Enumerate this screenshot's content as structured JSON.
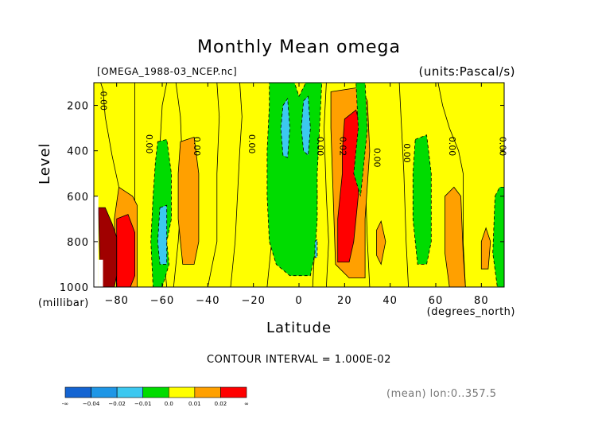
{
  "title": "Monthly Mean omega",
  "file_label": "[OMEGA_1988-03_NCEP.nc]",
  "units_label": "(units:Pascal/s)",
  "contour_interval": "CONTOUR INTERVAL = 1.000E-02",
  "mean_label": "(mean) lon:0..357.5",
  "chart_data": {
    "type": "heatmap",
    "title": "Monthly Mean omega",
    "xlabel": "Latitude",
    "x_units": "(degrees_north)",
    "ylabel": "Level",
    "y_units": "(millibar)",
    "xlim": [
      -90,
      90
    ],
    "ylim": [
      1000,
      100
    ],
    "y_reversed": true,
    "grid": false,
    "x_ticks": [
      -80,
      -60,
      -40,
      -20,
      0,
      20,
      40,
      60,
      80
    ],
    "y_ticks": [
      200,
      400,
      600,
      800,
      1000
    ],
    "levels": [
      -0.04,
      -0.02,
      -0.01,
      0.0,
      0.01,
      0.02
    ],
    "colorbar": {
      "colors": [
        "#1464d2",
        "#1e96e6",
        "#3cc8f0",
        "#00dc00",
        "#ffff00",
        "#ffa000",
        "#ff0000"
      ],
      "labels": [
        "-∞",
        "−0.04",
        "−0.02",
        "−0.01",
        "0.0",
        "0.01",
        "0.02",
        "∞"
      ]
    },
    "contour_labels": [
      {
        "text": "0.00",
        "x": -87,
        "y": 180
      },
      {
        "text": "0.00",
        "x": -67,
        "y": 370
      },
      {
        "text": "0.00",
        "x": -46,
        "y": 380
      },
      {
        "text": "0.00",
        "x": -22,
        "y": 370
      },
      {
        "text": "0.00",
        "x": 8,
        "y": 380
      },
      {
        "text": "0.02",
        "x": 18,
        "y": 380
      },
      {
        "text": "0.00",
        "x": 33,
        "y": 430
      },
      {
        "text": "0.00",
        "x": 46,
        "y": 410
      },
      {
        "text": "0.00",
        "x": 66,
        "y": 380
      },
      {
        "text": "0.00",
        "x": 88,
        "y": 380
      }
    ],
    "regions": [
      {
        "level": 0.0,
        "poly": [
          [
            -90,
            100
          ],
          [
            -87,
            100
          ],
          [
            -86,
            130
          ],
          [
            -85,
            250
          ],
          [
            -82,
            420
          ],
          [
            -79,
            560
          ],
          [
            -75,
            620
          ],
          [
            -72,
            650
          ],
          [
            -72,
            1000
          ],
          [
            -90,
            1000
          ]
        ]
      },
      {
        "level": 0.0,
        "poly": [
          [
            -72,
            100
          ],
          [
            -58,
            100
          ],
          [
            -60,
            200
          ],
          [
            -61,
            380
          ],
          [
            -60,
            600
          ],
          [
            -60,
            800
          ],
          [
            -58,
            1000
          ],
          [
            -72,
            1000
          ]
        ]
      },
      {
        "level": 0.0,
        "poly": [
          [
            -54,
            100
          ],
          [
            -36,
            100
          ],
          [
            -35,
            250
          ],
          [
            -36,
            500
          ],
          [
            -36,
            800
          ],
          [
            -40,
            1000
          ],
          [
            -55,
            1000
          ],
          [
            -53,
            800
          ],
          [
            -51,
            500
          ],
          [
            -52,
            250
          ]
        ]
      },
      {
        "level": 0.0,
        "poly": [
          [
            -26,
            100
          ],
          [
            -8,
            100
          ],
          [
            -10,
            200
          ],
          [
            -11,
            400
          ],
          [
            -13,
            600
          ],
          [
            -12,
            800
          ],
          [
            -14,
            1000
          ],
          [
            -30,
            1000
          ],
          [
            -28,
            800
          ],
          [
            -27,
            600
          ],
          [
            -26,
            400
          ],
          [
            -25,
            250
          ]
        ]
      },
      {
        "level": 0.0,
        "poly": [
          [
            6,
            100
          ],
          [
            12,
            100
          ],
          [
            11,
            300
          ],
          [
            12,
            600
          ],
          [
            13,
            800
          ],
          [
            12,
            1000
          ],
          [
            6,
            1000
          ],
          [
            7,
            800
          ],
          [
            8,
            600
          ],
          [
            7,
            400
          ]
        ]
      },
      {
        "level": 0.0,
        "poly": [
          [
            28,
            100
          ],
          [
            44,
            100
          ],
          [
            45,
            300
          ],
          [
            46,
            500
          ],
          [
            47,
            800
          ],
          [
            48,
            1000
          ],
          [
            31,
            1000
          ],
          [
            30,
            800
          ],
          [
            29,
            500
          ],
          [
            29,
            300
          ]
        ]
      },
      {
        "level": 0.0,
        "poly": [
          [
            61,
            100
          ],
          [
            90,
            100
          ],
          [
            90,
            1000
          ],
          [
            73,
            1000
          ],
          [
            72,
            800
          ],
          [
            72,
            500
          ],
          [
            70,
            400
          ],
          [
            66,
            300
          ],
          [
            63,
            200
          ]
        ]
      },
      {
        "level": 0.01,
        "poly": [
          [
            -52,
            360
          ],
          [
            -46,
            340
          ],
          [
            -44,
            500
          ],
          [
            -44,
            800
          ],
          [
            -46,
            900
          ],
          [
            -51,
            900
          ],
          [
            -53,
            700
          ],
          [
            -53,
            500
          ]
        ]
      },
      {
        "level": 0.01,
        "poly": [
          [
            14,
            140
          ],
          [
            27,
            120
          ],
          [
            30,
            180
          ],
          [
            31,
            400
          ],
          [
            29,
            700
          ],
          [
            29,
            960
          ],
          [
            22,
            960
          ],
          [
            16,
            900
          ],
          [
            15,
            600
          ],
          [
            14,
            300
          ]
        ]
      },
      {
        "level": 0.01,
        "poly": [
          [
            34,
            750
          ],
          [
            36,
            710
          ],
          [
            38,
            800
          ],
          [
            36,
            900
          ],
          [
            34,
            860
          ]
        ]
      },
      {
        "level": 0.01,
        "poly": [
          [
            64,
            600
          ],
          [
            68,
            560
          ],
          [
            71,
            600
          ],
          [
            72,
            850
          ],
          [
            73,
            1000
          ],
          [
            66,
            1000
          ],
          [
            64,
            850
          ]
        ]
      },
      {
        "level": 0.01,
        "poly": [
          [
            80,
            800
          ],
          [
            82,
            740
          ],
          [
            84,
            800
          ],
          [
            83,
            920
          ],
          [
            80,
            920
          ]
        ]
      },
      {
        "level": 0.01,
        "poly": [
          [
            -79,
            560
          ],
          [
            -73,
            600
          ],
          [
            -71,
            640
          ],
          [
            -71,
            1000
          ],
          [
            -80,
            1000
          ],
          [
            -81,
            700
          ]
        ]
      },
      {
        "level": 0.02,
        "poly": [
          [
            20,
            260
          ],
          [
            25,
            220
          ],
          [
            27,
            300
          ],
          [
            26,
            600
          ],
          [
            24,
            800
          ],
          [
            22,
            890
          ],
          [
            17,
            890
          ],
          [
            17,
            700
          ],
          [
            19,
            500
          ],
          [
            19,
            400
          ]
        ]
      },
      {
        "level": 0.02,
        "poly": [
          [
            -80,
            700
          ],
          [
            -75,
            680
          ],
          [
            -72,
            760
          ],
          [
            -72,
            950
          ],
          [
            -74,
            1000
          ],
          [
            -80,
            1000
          ]
        ]
      },
      {
        "level": 0.03,
        "poly": [
          [
            -88,
            650
          ],
          [
            -85,
            650
          ],
          [
            -82,
            720
          ],
          [
            -80,
            780
          ],
          [
            -80,
            950
          ],
          [
            -81,
            1000
          ],
          [
            -87,
            1000
          ]
        ]
      },
      {
        "level": -0.01,
        "poly": [
          [
            -62,
            360
          ],
          [
            -58,
            350
          ],
          [
            -56,
            500
          ],
          [
            -56,
            700
          ],
          [
            -58,
            800
          ],
          [
            -57,
            900
          ],
          [
            -60,
            1000
          ],
          [
            -64,
            1000
          ],
          [
            -65,
            800
          ],
          [
            -64,
            600
          ],
          [
            -63,
            450
          ]
        ]
      },
      {
        "level": -0.01,
        "poly": [
          [
            -13,
            100
          ],
          [
            -2,
            100
          ],
          [
            0,
            160
          ],
          [
            3,
            100
          ],
          [
            10,
            100
          ],
          [
            9,
            300
          ],
          [
            8,
            500
          ],
          [
            8,
            700
          ],
          [
            7,
            850
          ],
          [
            5,
            950
          ],
          [
            -4,
            950
          ],
          [
            -10,
            900
          ],
          [
            -13,
            800
          ],
          [
            -14,
            600
          ],
          [
            -14,
            400
          ],
          [
            -13,
            200
          ]
        ]
      },
      {
        "level": -0.01,
        "poly": [
          [
            25,
            100
          ],
          [
            29,
            100
          ],
          [
            30,
            300
          ],
          [
            27,
            600
          ],
          [
            24,
            500
          ],
          [
            26,
            300
          ]
        ]
      },
      {
        "level": -0.01,
        "poly": [
          [
            51,
            350
          ],
          [
            56,
            330
          ],
          [
            58,
            500
          ],
          [
            58,
            800
          ],
          [
            56,
            900
          ],
          [
            52,
            900
          ],
          [
            50,
            700
          ],
          [
            50,
            500
          ]
        ]
      },
      {
        "level": -0.01,
        "poly": [
          [
            86,
            600
          ],
          [
            88,
            560
          ],
          [
            90,
            560
          ],
          [
            90,
            1000
          ],
          [
            87,
            1000
          ],
          [
            85,
            850
          ]
        ]
      },
      {
        "level": -0.02,
        "poly": [
          [
            -61,
            650
          ],
          [
            -58,
            640
          ],
          [
            -58,
            900
          ],
          [
            -61,
            900
          ],
          [
            -62,
            800
          ]
        ]
      },
      {
        "level": -0.02,
        "poly": [
          [
            -7,
            200
          ],
          [
            -5,
            170
          ],
          [
            -4,
            300
          ],
          [
            -5,
            430
          ],
          [
            -7,
            420
          ],
          [
            -8,
            300
          ]
        ]
      },
      {
        "level": -0.02,
        "poly": [
          [
            2,
            180
          ],
          [
            4,
            160
          ],
          [
            5,
            300
          ],
          [
            4,
            420
          ],
          [
            2,
            400
          ],
          [
            1,
            300
          ]
        ]
      },
      {
        "level": -0.02,
        "poly": [
          [
            7,
            800
          ],
          [
            8,
            790
          ],
          [
            8,
            870
          ],
          [
            7,
            870
          ]
        ]
      }
    ],
    "missing": [
      {
        "poly": [
          [
            -90,
            600
          ],
          [
            -88,
            600
          ],
          [
            -88,
            1000
          ],
          [
            -90,
            1000
          ]
        ]
      },
      {
        "poly": [
          [
            -88,
            880
          ],
          [
            -86,
            880
          ],
          [
            -86,
            1000
          ],
          [
            -88,
            1000
          ]
        ]
      }
    ]
  }
}
